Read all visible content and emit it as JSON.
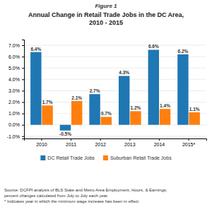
{
  "chart_data": {
    "type": "bar",
    "title": "Annual Change in Retail Trade Jobs in the DC Area,\n2010 - 2015",
    "annotations": [
      "Figure 1",
      "Source: DCFPI analysis of BLS State and Metro Area Employment, Hours, & Earnings;\npercent changes calculated from July to July each year.\n* Indicates year in which the minimum wage increase has been in effect."
    ],
    "categories": [
      "2010",
      "2011",
      "2012",
      "2013",
      "2014",
      "2015*"
    ],
    "series": [
      {
        "name": "DC Retail Trade Jobs",
        "values": [
          6.4,
          -0.5,
          2.7,
          4.3,
          6.6,
          6.2
        ],
        "value_labels": [
          "6.4%",
          "-0.5%",
          "2.7%",
          "4.3%",
          "6.6%",
          "6.2%"
        ]
      },
      {
        "name": "Suburban Retail Trade Jobs",
        "values": [
          1.7,
          2.1,
          0.7,
          1.2,
          1.4,
          1.1
        ],
        "value_labels": [
          "1.7%",
          "2.1%",
          "0.7%",
          "1.2%",
          "1.4%",
          "1.1%"
        ]
      }
    ],
    "ylim": [
      -1.2,
      7.5
    ],
    "yticks": [
      {
        "value": -1.0,
        "label": "-1.0%"
      },
      {
        "value": 0.0,
        "label": "0.0%"
      },
      {
        "value": 1.0,
        "label": "1.0%"
      },
      {
        "value": 2.0,
        "label": "2.0%"
      },
      {
        "value": 3.0,
        "label": "3.0%"
      },
      {
        "value": 4.0,
        "label": "4.0%"
      },
      {
        "value": 5.0,
        "label": "5.0%"
      },
      {
        "value": 6.0,
        "label": "6.0%"
      },
      {
        "value": 7.0,
        "label": "7.0%"
      }
    ],
    "grid": true,
    "data_labels": true,
    "legend": "bottom"
  }
}
